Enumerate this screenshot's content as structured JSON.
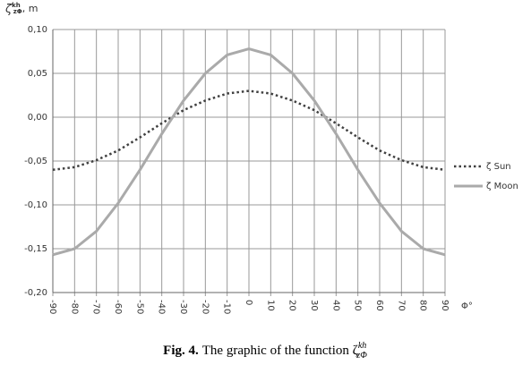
{
  "chart_data": {
    "type": "line",
    "y_label": {
      "symbol": "ζ",
      "sup": "kh",
      "sub": "zΦ",
      "unit": ", m"
    },
    "x_label": "Φ°",
    "caption": {
      "fig": "Fig. 4.",
      "text": "The graphic of the function ζ",
      "sup": "kh",
      "sub": "zΦ"
    },
    "x": [
      -90,
      -80,
      -70,
      -60,
      -50,
      -40,
      -30,
      -20,
      -10,
      0,
      10,
      20,
      30,
      40,
      50,
      60,
      70,
      80,
      90
    ],
    "xlim": [
      -90,
      90
    ],
    "xticks": [
      -90,
      -80,
      -70,
      -60,
      -50,
      -40,
      -30,
      -20,
      -10,
      0,
      10,
      20,
      30,
      40,
      50,
      60,
      70,
      80,
      90
    ],
    "ylim": [
      -0.2,
      0.1
    ],
    "yticks": [
      {
        "value": 0.1,
        "label": "0,10"
      },
      {
        "value": 0.05,
        "label": "0,05"
      },
      {
        "value": 0,
        "label": "0,00"
      },
      {
        "value": -0.05,
        "label": "-0,05"
      },
      {
        "value": -0.1,
        "label": "-0,10"
      },
      {
        "value": -0.15,
        "label": "-0,15"
      },
      {
        "value": -0.2,
        "label": "-0,20"
      }
    ],
    "grid": true,
    "legend": "right",
    "series": [
      {
        "name": "ζ Sun",
        "color": "#404040",
        "dash": "dotted",
        "values": [
          -0.06,
          -0.057,
          -0.049,
          -0.038,
          -0.023,
          -0.007,
          0.008,
          0.019,
          0.027,
          0.03,
          0.027,
          0.019,
          0.008,
          -0.007,
          -0.023,
          -0.038,
          -0.049,
          -0.057,
          -0.06
        ]
      },
      {
        "name": "ζ Moon",
        "color": "#aaaaaa",
        "dash": "solid",
        "values": [
          -0.157,
          -0.15,
          -0.13,
          -0.098,
          -0.06,
          -0.019,
          0.019,
          0.05,
          0.071,
          0.078,
          0.071,
          0.05,
          0.019,
          -0.019,
          -0.06,
          -0.098,
          -0.13,
          -0.15,
          -0.157
        ]
      }
    ]
  }
}
